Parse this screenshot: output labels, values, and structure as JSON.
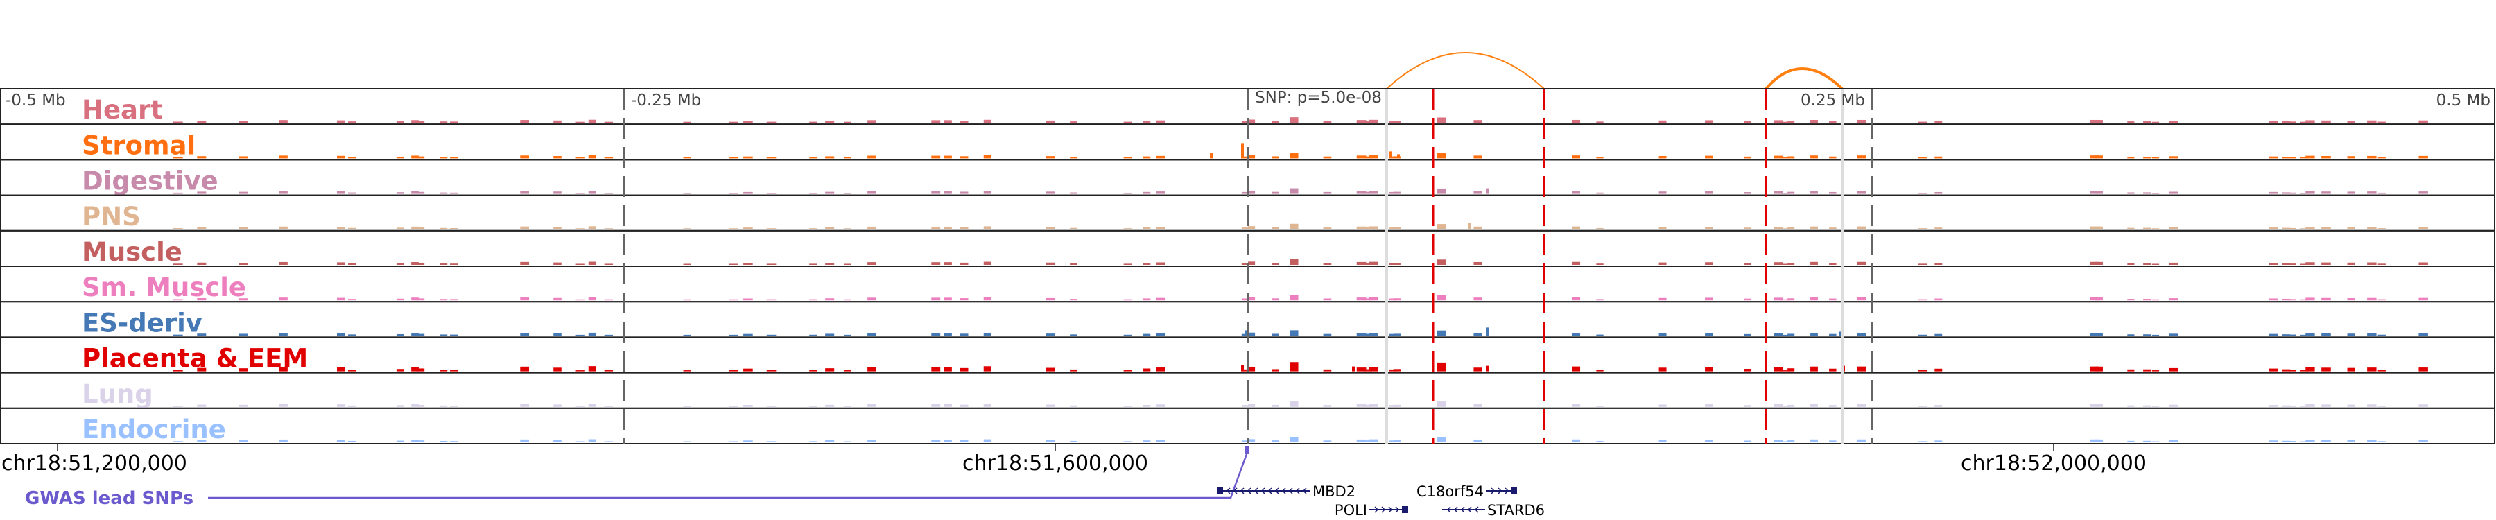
{
  "scale_labels": {
    "left": "-0.5 Mb",
    "left_mid": "-0.25 Mb",
    "snp": "SNP: p=5.0e-08",
    "right_mid": "0.25 Mb",
    "right": "0.5 Mb"
  },
  "tracks": [
    {
      "label": "Heart",
      "color": "#d9707f"
    },
    {
      "label": "Stromal",
      "color": "#ff6f0f"
    },
    {
      "label": "Digestive",
      "color": "#c88aab"
    },
    {
      "label": "PNS",
      "color": "#e0b592"
    },
    {
      "label": "Muscle",
      "color": "#c45f5f"
    },
    {
      "label": "Sm. Muscle",
      "color": "#ee7fbf"
    },
    {
      "label": "ES-deriv",
      "color": "#4479b5"
    },
    {
      "label": "Placenta & EEM",
      "color": "#e00000"
    },
    {
      "label": "Lung",
      "color": "#d9d2e9"
    },
    {
      "label": "Endocrine",
      "color": "#99c0ff"
    }
  ],
  "coordinates": [
    "chr18:51,200,000",
    "chr18:51,600,000",
    "chr18:52,000,000"
  ],
  "gwas_label": "GWAS lead SNPs",
  "genes": [
    {
      "name": "MBD2",
      "strand": "-"
    },
    {
      "name": "POLI",
      "strand": "+"
    },
    {
      "name": "C18orf54",
      "strand": "+"
    },
    {
      "name": "STARD6",
      "strand": "-"
    }
  ],
  "colors": {
    "arc": "#ff7f0e",
    "highlight": "#e00000",
    "gene": "#1a1a6e",
    "gwas": "#6a5acd"
  }
}
